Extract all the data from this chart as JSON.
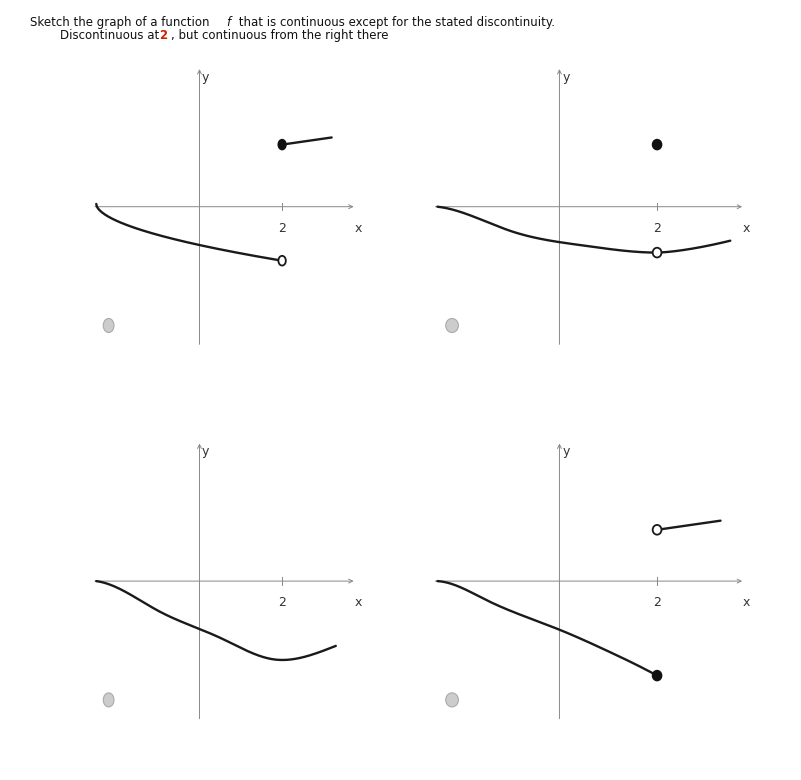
{
  "title1": "Sketch the graph of a function ",
  "title1_f": "f",
  "title1_rest": " that is continuous except for the stated discontinuity.",
  "title2_pre": "Discontinuous at ",
  "title2_num": "2",
  "title2_post": ", but continuous from the right there",
  "bg_color": "#ffffff",
  "axis_color": "#888888",
  "curve_color": "#1a1a1a",
  "text_color": "#111111",
  "highlight_color": "#cc2200",
  "dot_filled": "#111111",
  "dot_open_face": "#ffffff",
  "radio_face": "#cccccc",
  "radio_edge": "#aaaaaa",
  "title_fontsize": 8.5,
  "axis_label_fontsize": 9,
  "tick_label_fontsize": 9
}
